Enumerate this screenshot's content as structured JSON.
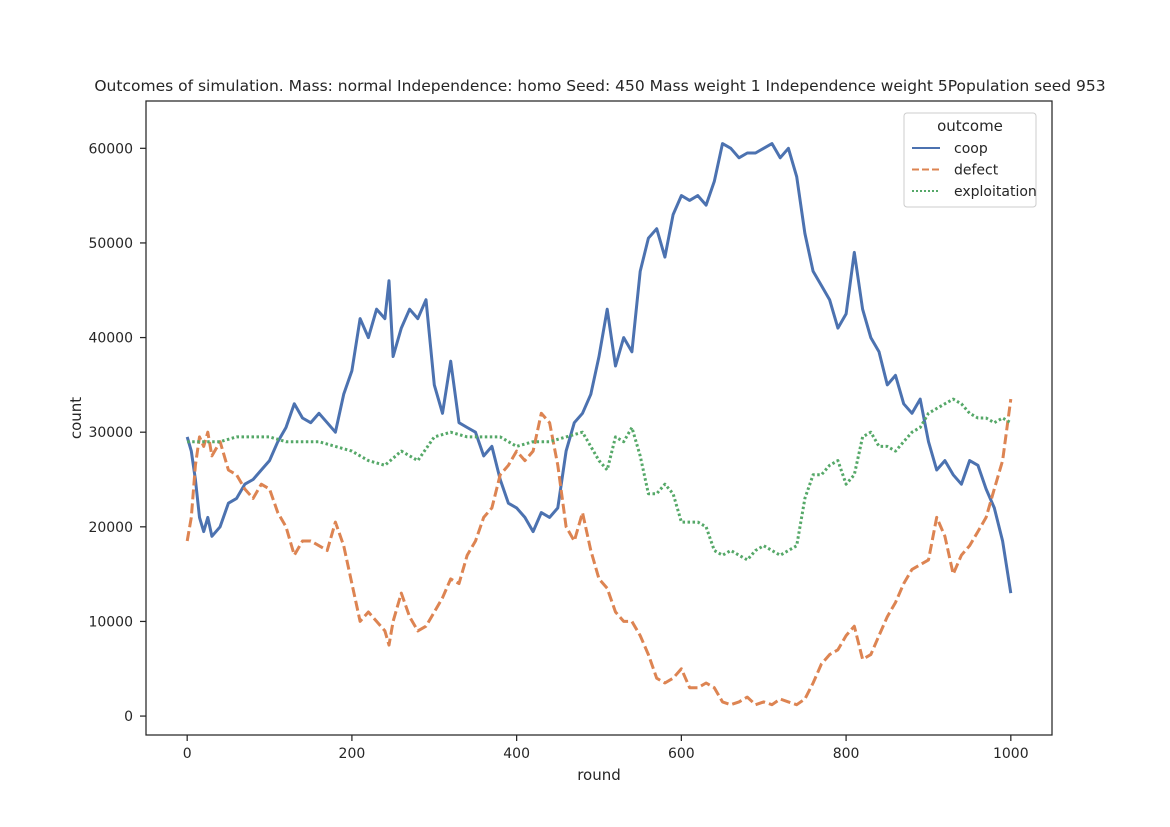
{
  "chart_data": {
    "type": "line",
    "title": "Outcomes of simulation. Mass: normal Independence: homo Seed: 450 Mass weight 1 Independence weight 5Population seed 953",
    "xlabel": "round",
    "ylabel": "count",
    "xlim": [
      -50,
      1050
    ],
    "ylim": [
      -2000,
      65000
    ],
    "xticks": [
      0,
      200,
      400,
      600,
      800,
      1000
    ],
    "yticks": [
      0,
      10000,
      20000,
      30000,
      40000,
      50000,
      60000
    ],
    "grid": false,
    "legend": {
      "title": "outcome",
      "placement": "top-right"
    },
    "series": [
      {
        "name": "coop",
        "color": "#4c72b0",
        "dash": "solid",
        "x": [
          0,
          5,
          10,
          15,
          20,
          25,
          30,
          40,
          50,
          60,
          70,
          80,
          90,
          100,
          110,
          120,
          130,
          140,
          150,
          160,
          170,
          180,
          190,
          200,
          210,
          220,
          230,
          240,
          245,
          250,
          260,
          270,
          280,
          290,
          300,
          310,
          320,
          330,
          340,
          350,
          360,
          370,
          380,
          390,
          400,
          410,
          420,
          430,
          440,
          450,
          460,
          470,
          480,
          490,
          500,
          510,
          520,
          530,
          540,
          550,
          560,
          570,
          580,
          590,
          600,
          610,
          620,
          630,
          640,
          650,
          660,
          670,
          680,
          690,
          700,
          710,
          720,
          730,
          740,
          750,
          760,
          770,
          780,
          790,
          800,
          810,
          820,
          830,
          840,
          850,
          860,
          870,
          880,
          890,
          900,
          910,
          920,
          930,
          940,
          950,
          960,
          970,
          980,
          990,
          1000
        ],
        "values": [
          29500,
          28000,
          25000,
          21000,
          19500,
          21000,
          19000,
          20000,
          22500,
          23000,
          24500,
          25000,
          26000,
          27000,
          29000,
          30500,
          33000,
          31500,
          31000,
          32000,
          31000,
          30000,
          34000,
          36500,
          42000,
          40000,
          43000,
          42000,
          46000,
          38000,
          41000,
          43000,
          42000,
          44000,
          35000,
          32000,
          37500,
          31000,
          30500,
          30000,
          27500,
          28500,
          25000,
          22500,
          22000,
          21000,
          19500,
          21500,
          21000,
          22000,
          28000,
          31000,
          32000,
          34000,
          38000,
          43000,
          37000,
          40000,
          38500,
          47000,
          50500,
          51500,
          48500,
          53000,
          55000,
          54500,
          55000,
          54000,
          56500,
          60500,
          60000,
          59000,
          59500,
          59500,
          60000,
          60500,
          59000,
          60000,
          57000,
          51000,
          47000,
          45500,
          44000,
          41000,
          42500,
          49000,
          43000,
          40000,
          38500,
          35000,
          36000,
          33000,
          32000,
          33500,
          29000,
          26000,
          27000,
          25500,
          24500,
          27000,
          26500,
          24000,
          22000,
          18500,
          13000
        ]
      },
      {
        "name": "defect",
        "color": "#dd8452",
        "dash": "dashed",
        "x": [
          0,
          5,
          10,
          15,
          20,
          25,
          30,
          40,
          50,
          60,
          70,
          80,
          90,
          100,
          110,
          120,
          130,
          140,
          150,
          160,
          170,
          180,
          190,
          200,
          210,
          220,
          230,
          240,
          245,
          250,
          260,
          270,
          280,
          290,
          300,
          310,
          320,
          330,
          340,
          350,
          360,
          370,
          380,
          390,
          400,
          410,
          420,
          430,
          440,
          450,
          460,
          470,
          480,
          490,
          500,
          510,
          520,
          530,
          540,
          550,
          560,
          570,
          580,
          590,
          600,
          610,
          620,
          630,
          640,
          650,
          660,
          670,
          680,
          690,
          700,
          710,
          720,
          730,
          740,
          750,
          760,
          770,
          780,
          790,
          800,
          810,
          820,
          830,
          840,
          850,
          860,
          870,
          880,
          890,
          900,
          910,
          920,
          930,
          940,
          950,
          960,
          970,
          980,
          990,
          1000
        ],
        "values": [
          18500,
          21000,
          26500,
          29500,
          28500,
          30000,
          27500,
          29000,
          26000,
          25500,
          24000,
          23000,
          24500,
          24000,
          21500,
          20000,
          17000,
          18500,
          18500,
          18000,
          17500,
          20500,
          18000,
          14000,
          10000,
          11000,
          10000,
          9000,
          7500,
          10000,
          13000,
          10500,
          9000,
          9500,
          11000,
          12500,
          14500,
          14000,
          17000,
          18500,
          21000,
          22000,
          25500,
          26500,
          28000,
          27000,
          28000,
          32000,
          31000,
          26500,
          20000,
          18500,
          21500,
          17500,
          14500,
          13500,
          11000,
          10000,
          10000,
          8500,
          6500,
          4000,
          3500,
          4000,
          5000,
          3000,
          3000,
          3500,
          3000,
          1500,
          1200,
          1500,
          2000,
          1200,
          1500,
          1200,
          1800,
          1500,
          1200,
          1800,
          3500,
          5500,
          6500,
          7000,
          8500,
          9500,
          6000,
          6500,
          8500,
          10500,
          12000,
          14000,
          15500,
          16000,
          16500,
          21000,
          19000,
          15000,
          17000,
          18000,
          19500,
          21000,
          24000,
          27000,
          33500
        ]
      },
      {
        "name": "exploitation",
        "color": "#55a868",
        "dash": "dotted",
        "x": [
          0,
          20,
          40,
          60,
          80,
          100,
          120,
          140,
          160,
          180,
          200,
          220,
          240,
          260,
          280,
          300,
          320,
          340,
          360,
          380,
          400,
          420,
          440,
          460,
          480,
          500,
          510,
          520,
          530,
          540,
          550,
          560,
          570,
          580,
          590,
          600,
          610,
          620,
          630,
          640,
          650,
          660,
          670,
          680,
          690,
          700,
          710,
          720,
          730,
          740,
          750,
          760,
          770,
          780,
          790,
          800,
          810,
          820,
          830,
          840,
          850,
          860,
          870,
          880,
          890,
          900,
          910,
          920,
          930,
          940,
          950,
          960,
          970,
          980,
          990,
          1000
        ],
        "values": [
          29000,
          29000,
          29000,
          29500,
          29500,
          29500,
          29000,
          29000,
          29000,
          28500,
          28000,
          27000,
          26500,
          28000,
          27000,
          29500,
          30000,
          29500,
          29500,
          29500,
          28500,
          29000,
          29000,
          29500,
          30000,
          27000,
          26000,
          29500,
          29000,
          30500,
          27500,
          23500,
          23500,
          24500,
          23500,
          20500,
          20500,
          20500,
          20000,
          17500,
          17000,
          17500,
          17000,
          16500,
          17500,
          18000,
          17500,
          17000,
          17500,
          18000,
          23000,
          25500,
          25500,
          26500,
          27000,
          24500,
          25500,
          29500,
          30000,
          28500,
          28500,
          28000,
          29000,
          30000,
          30500,
          32000,
          32500,
          33000,
          33500,
          33000,
          32000,
          31500,
          31500,
          31000,
          31500,
          31000
        ]
      }
    ]
  }
}
